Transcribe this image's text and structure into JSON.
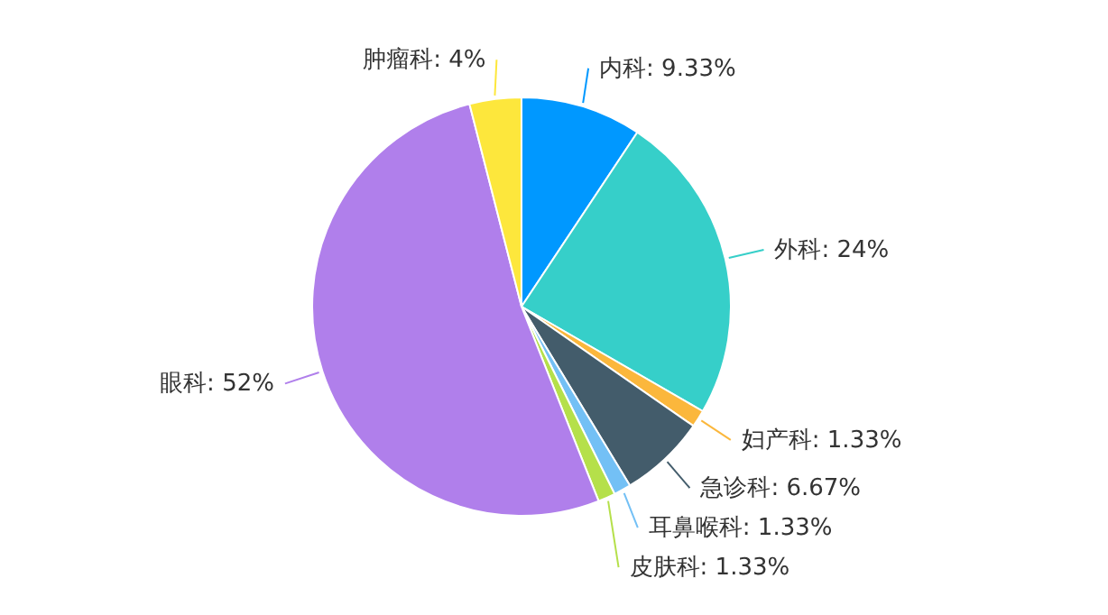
{
  "chart_data": {
    "type": "pie",
    "categories": [
      "内科",
      "外科",
      "妇产科",
      "急诊科",
      "耳鼻喉科",
      "皮肤科",
      "眼科",
      "肿瘤科"
    ],
    "values": [
      9.33,
      24,
      1.33,
      6.67,
      1.33,
      1.33,
      52,
      4
    ],
    "colors": [
      "#0098ff",
      "#36cfc9",
      "#fbb73c",
      "#435c6b",
      "#73c0f5",
      "#b5e04a",
      "#b07feb",
      "#fde73c"
    ],
    "value_labels": [
      "9.33%",
      "24%",
      "1.33%",
      "6.67%",
      "1.33%",
      "1.33%",
      "52%",
      "4%"
    ]
  }
}
